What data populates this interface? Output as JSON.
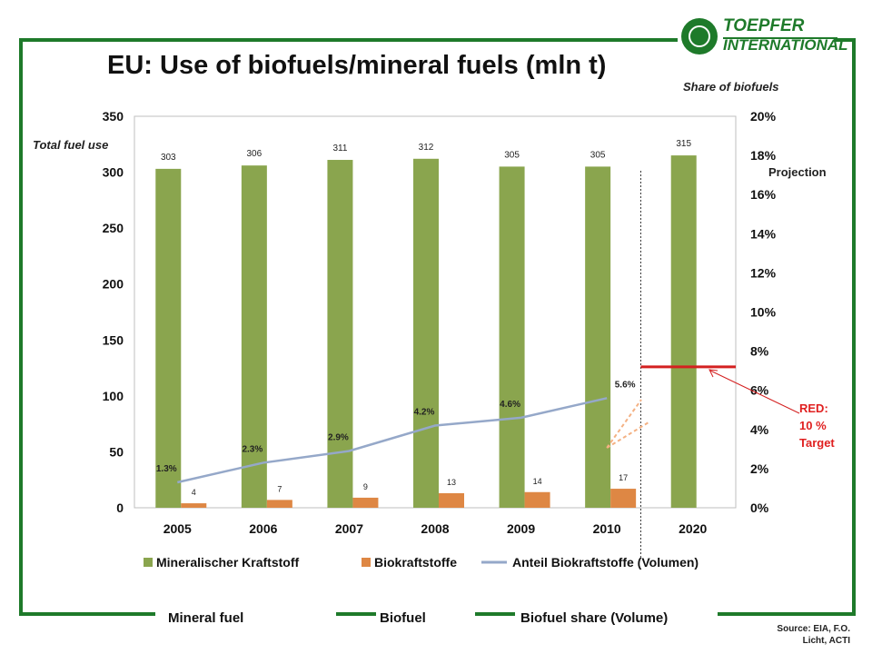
{
  "title": "EU: Use of biofuels/mineral fuels (mln t)",
  "logo": {
    "line1": "TOEPFER",
    "line2": "INTERNATIONAL"
  },
  "left_axis_label": "Total fuel use",
  "right_axis_label": "Share of biofuels",
  "projection_label": "Projection",
  "target_note": {
    "line1": "RED:",
    "line2": "10 %",
    "line3": "Target"
  },
  "bottom_labels": {
    "mineral": "Mineral fuel",
    "biofuel": "Biofuel",
    "share": "Biofuel share (Volume)"
  },
  "source": {
    "line1": "Source: EIA, F.O.",
    "line2": "Licht, ACTI"
  },
  "colors": {
    "frame": "#1e7a2a",
    "mineral": "#8aa54e",
    "biofuel": "#de8744",
    "share_line": "#95a8c9",
    "target": "#d42020",
    "note": "#e02020"
  },
  "chart_data": {
    "type": "bar",
    "categories": [
      "2005",
      "2006",
      "2007",
      "2008",
      "2009",
      "2010",
      "2020"
    ],
    "series": [
      {
        "name": "Mineralischer Kraftstoff",
        "type": "bar",
        "axis": "left",
        "values": [
          303,
          306,
          311,
          312,
          305,
          305,
          315
        ],
        "labels": [
          "303",
          "306",
          "311",
          "312",
          "305",
          "305",
          "315"
        ]
      },
      {
        "name": "Biokraftstoffe",
        "type": "bar",
        "axis": "left",
        "values": [
          4,
          7,
          9,
          13,
          14,
          17,
          null
        ],
        "labels": [
          "4",
          "7",
          "9",
          "13",
          "14",
          "17",
          ""
        ]
      },
      {
        "name": "Anteil Biokraftstoffe (Volumen)",
        "type": "line",
        "axis": "right",
        "values": [
          1.3,
          2.3,
          2.9,
          4.2,
          4.6,
          5.6,
          null
        ],
        "labels": [
          "1.3%",
          "2.3%",
          "2.9%",
          "4.2%",
          "4.6%",
          "5.6%",
          ""
        ]
      }
    ],
    "left_axis": {
      "min": 0,
      "max": 350,
      "ticks": [
        "0",
        "50",
        "100",
        "150",
        "200",
        "250",
        "300",
        "350"
      ]
    },
    "right_axis": {
      "min": 0,
      "max": 20,
      "ticks": [
        "0%",
        "2%",
        "4%",
        "6%",
        "8%",
        "10%",
        "12%",
        "14%",
        "16%",
        "18%",
        "20%"
      ]
    },
    "target_share": 7.2,
    "legend_position": "bottom"
  }
}
